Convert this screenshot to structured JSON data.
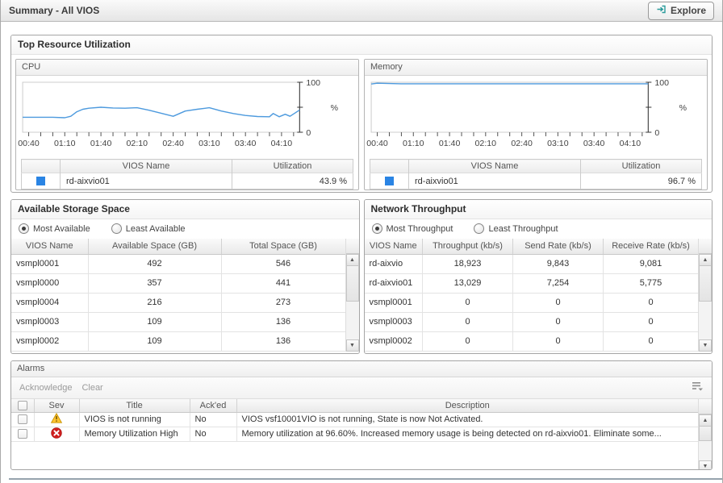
{
  "header": {
    "title": "Summary - All VIOS",
    "explore_label": "Explore"
  },
  "colors": {
    "line_blue": "#4d9ade",
    "legend_blue": "#2a84e4",
    "warning_yellow": "#fdc431",
    "error_red": "#cf1d1d",
    "explore_icon_teal": "#2a9b9b"
  },
  "top_resource": {
    "title": "Top Resource Utilization"
  },
  "chart_data": [
    {
      "type": "line",
      "title": "CPU",
      "ylabel": "%",
      "ylim": [
        0,
        100
      ],
      "x_range": [
        "00:35",
        "04:25"
      ],
      "x_tick_labels": [
        "00:40",
        "01:10",
        "01:40",
        "02:10",
        "02:40",
        "03:10",
        "03:40",
        "04:10"
      ],
      "grid": false,
      "legend_position": "bottom-table",
      "series": [
        {
          "name": "rd-aixvio01",
          "color": "#4d9ade",
          "points": [
            [
              "00:35",
              30
            ],
            [
              "00:40",
              30
            ],
            [
              "00:50",
              30
            ],
            [
              "01:00",
              30
            ],
            [
              "01:10",
              29
            ],
            [
              "01:15",
              32
            ],
            [
              "01:20",
              41
            ],
            [
              "01:25",
              46
            ],
            [
              "01:30",
              48
            ],
            [
              "01:40",
              50
            ],
            [
              "01:50",
              48.5
            ],
            [
              "02:00",
              48
            ],
            [
              "02:10",
              49
            ],
            [
              "02:20",
              44
            ],
            [
              "02:30",
              38
            ],
            [
              "02:40",
              32
            ],
            [
              "02:50",
              42.5
            ],
            [
              "03:00",
              46
            ],
            [
              "03:10",
              49
            ],
            [
              "03:20",
              42.5
            ],
            [
              "03:30",
              37.5
            ],
            [
              "03:40",
              33.5
            ],
            [
              "03:50",
              31.5
            ],
            [
              "04:00",
              31
            ],
            [
              "04:03",
              37.5
            ],
            [
              "04:08",
              31
            ],
            [
              "04:13",
              36
            ],
            [
              "04:17",
              32
            ],
            [
              "04:25",
              44.5
            ]
          ]
        }
      ],
      "legend": {
        "headers": [
          "VIOS Name",
          "Utilization"
        ],
        "rows": [
          {
            "name": "rd-aixvio01",
            "value": "43.9 %",
            "color": "#2a84e4"
          }
        ]
      }
    },
    {
      "type": "line",
      "title": "Memory",
      "ylabel": "%",
      "ylim": [
        0,
        100
      ],
      "x_range": [
        "00:35",
        "04:25"
      ],
      "x_tick_labels": [
        "00:40",
        "01:10",
        "01:40",
        "02:10",
        "02:40",
        "03:10",
        "03:40",
        "04:10"
      ],
      "grid": false,
      "legend_position": "bottom-table",
      "series": [
        {
          "name": "rd-aixvio01",
          "color": "#4d9ade",
          "points": [
            [
              "00:35",
              96.5
            ],
            [
              "00:40",
              98
            ],
            [
              "00:50",
              97.5
            ],
            [
              "01:00",
              97
            ],
            [
              "02:00",
              97
            ],
            [
              "03:00",
              97
            ],
            [
              "04:25",
              97
            ]
          ]
        }
      ],
      "legend": {
        "headers": [
          "VIOS Name",
          "Utilization"
        ],
        "rows": [
          {
            "name": "rd-aixvio01",
            "value": "96.7 %",
            "color": "#2a84e4"
          }
        ]
      }
    }
  ],
  "storage": {
    "title": "Available Storage Space",
    "radios": [
      {
        "label": "Most Available",
        "selected": true
      },
      {
        "label": "Least Available",
        "selected": false
      }
    ],
    "columns": [
      "VIOS Name",
      "Available Space (GB)",
      "Total Space (GB)"
    ],
    "rows": [
      [
        "vsmpl0001",
        "492",
        "546"
      ],
      [
        "vsmpl0000",
        "357",
        "441"
      ],
      [
        "vsmpl0004",
        "216",
        "273"
      ],
      [
        "vsmpl0003",
        "109",
        "136"
      ],
      [
        "vsmpl0002",
        "109",
        "136"
      ]
    ]
  },
  "network": {
    "title": "Network Throughput",
    "radios": [
      {
        "label": "Most Throughput",
        "selected": true
      },
      {
        "label": "Least Throughput",
        "selected": false
      }
    ],
    "columns": [
      "VIOS Name",
      "Throughput (kb/s)",
      "Send Rate (kb/s)",
      "Receive Rate (kb/s)"
    ],
    "rows": [
      [
        "rd-aixvio",
        "18,923",
        "9,843",
        "9,081"
      ],
      [
        "rd-aixvio01",
        "13,029",
        "7,254",
        "5,775"
      ],
      [
        "vsmpl0001",
        "0",
        "0",
        "0"
      ],
      [
        "vsmpl0003",
        "0",
        "0",
        "0"
      ],
      [
        "vsmpl0002",
        "0",
        "0",
        "0"
      ]
    ]
  },
  "alarms": {
    "title": "Alarms",
    "actions": [
      "Acknowledge",
      "Clear"
    ],
    "columns": [
      "Sev",
      "Title",
      "Ack'ed",
      "Description"
    ],
    "rows": [
      {
        "severity": "warning",
        "title": "VIOS is not running",
        "acked": "No",
        "description": "VIOS vsf10001VIO is not running, State is now Not Activated."
      },
      {
        "severity": "error",
        "title": "Memory Utilization High",
        "acked": "No",
        "description": "Memory utilization at 96.60%. Increased memory usage is being detected on rd-aixvio01. Eliminate some..."
      }
    ]
  }
}
